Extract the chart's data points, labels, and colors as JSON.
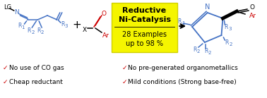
{
  "bg_color": "#ffffff",
  "box_color": "#f5f500",
  "box_edge_color": "#d0d000",
  "blue": "#4472c4",
  "red": "#cc0000",
  "black": "#000000",
  "ar_red": "#cc0000",
  "box_text1": "Reductive",
  "box_text2": "Ni-Catalysis",
  "box_text3": "28 Examples",
  "box_text4": "up to 98 %",
  "figsize": [
    3.78,
    1.39
  ],
  "dpi": 100
}
